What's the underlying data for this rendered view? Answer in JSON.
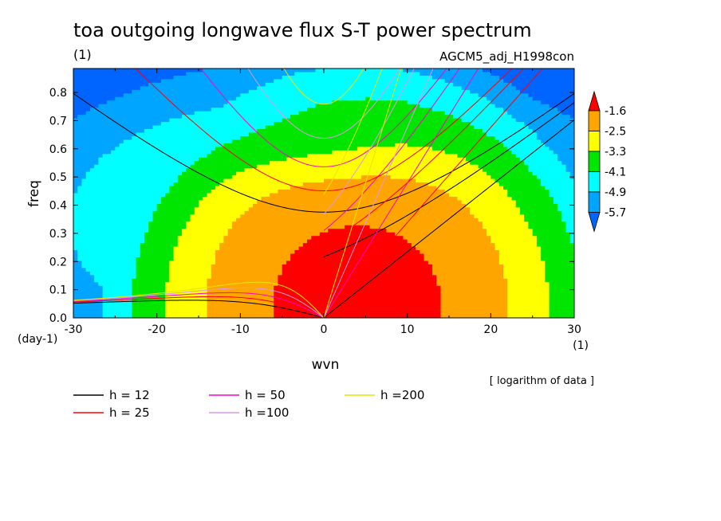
{
  "chart_data": {
    "type": "heatmap",
    "title": "toa outgoing longwave flux S-T power spectrum",
    "subtitle_left": "(1)",
    "subtitle_right": "AGCM5_adj_H1998con",
    "xlabel": "wvn",
    "ylabel": "freq",
    "xunit": "(1)",
    "yunit": "(day-1)",
    "note": "[ logarithm of data ]",
    "xlim": [
      -30,
      30
    ],
    "ylim": [
      0,
      0.885
    ],
    "xticks": [
      -30,
      -20,
      -10,
      0,
      10,
      20,
      30
    ],
    "xtick_labels": [
      "-30",
      "-20",
      "-10",
      "0",
      "10",
      "20",
      "30"
    ],
    "yticks": [
      0,
      0.1,
      0.2,
      0.3,
      0.4,
      0.5,
      0.6,
      0.7,
      0.8
    ],
    "ytick_labels": [
      "0.0",
      "0.1",
      "0.2",
      "0.3",
      "0.4",
      "0.5",
      "0.6",
      "0.7",
      "0.8"
    ],
    "colorbar": {
      "levels": [
        -1.6,
        -2.5,
        -3.3,
        -4.1,
        -4.9,
        -5.7
      ],
      "labels": [
        "-1.6",
        "-2.5",
        "-3.3",
        "-4.1",
        "-4.9",
        "-5.7"
      ],
      "colors": [
        "#ff0000",
        "#ffa500",
        "#ffff00",
        "#00e600",
        "#00ffff",
        "#00a5ff",
        "#0064ff"
      ]
    },
    "dispersion_curves": [
      {
        "name": "h = 12",
        "h": 12,
        "color": "#000000"
      },
      {
        "name": "h = 25",
        "h": 25,
        "color": "#ff0000"
      },
      {
        "name": "h = 50",
        "h": 50,
        "color": "#ff00c8"
      },
      {
        "name": "h =100",
        "h": 100,
        "color": "#dc9ae6"
      },
      {
        "name": "h =200",
        "h": 200,
        "color": "#e6e600"
      }
    ]
  }
}
